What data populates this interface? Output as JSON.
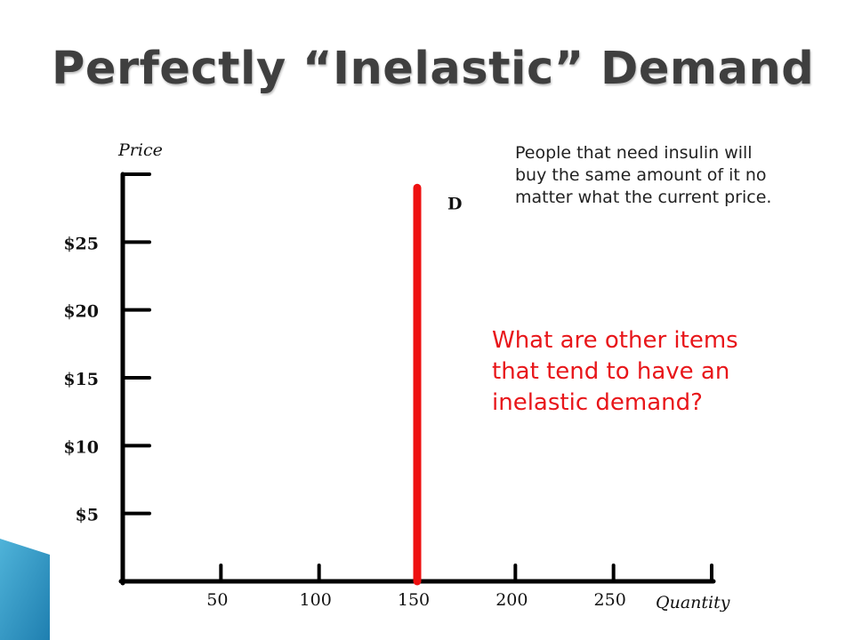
{
  "slide": {
    "title": "Perfectly “Inelastic” Demand",
    "note": "People that need insulin will buy the same amount of it no matter what the current price.",
    "question": "What are other items that tend to have an inelastic demand?",
    "question_color": "#e8161a"
  },
  "chart_data": {
    "type": "line",
    "title": "",
    "xlabel": "Quantity",
    "ylabel": "Price",
    "x_ticks": [
      "50",
      "100",
      "150",
      "200",
      "250"
    ],
    "y_ticks": [
      "$5",
      "$10",
      "$15",
      "$20",
      "$25"
    ],
    "xlim": [
      0,
      300
    ],
    "ylim": [
      0,
      30
    ],
    "grid": false,
    "series": [
      {
        "name": "D",
        "x": [
          150,
          150
        ],
        "y": [
          0,
          29
        ],
        "color": "#ee1111"
      }
    ]
  }
}
